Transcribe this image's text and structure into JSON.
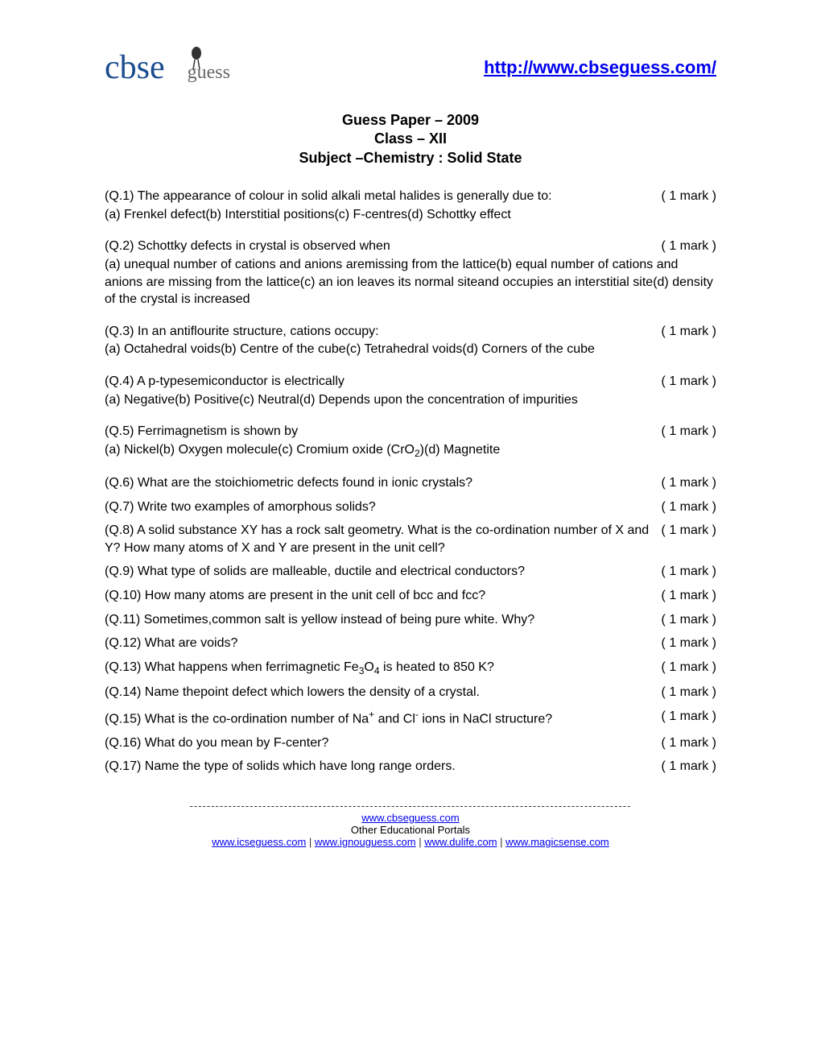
{
  "header": {
    "logo_cbse": "cbse",
    "logo_guess": "guess",
    "url": "http://www.cbseguess.com/"
  },
  "title": {
    "line1": "Guess Paper – 2009",
    "line2": "Class – XII",
    "line3": "Subject –Chemistry : Solid State"
  },
  "questions": [
    {
      "num": "(Q.1)",
      "text": "  The appearance of colour in solid alkali metal halides is generally due to:",
      "mark": "( 1 mark )",
      "options": "(a) Frenkel defect(b) Interstitial positions(c) F-centres(d) Schottky effect"
    },
    {
      "num": "(Q.2)",
      "text": "  Schottky defects in crystal is observed when",
      "mark": "( 1 mark )",
      "options": "(a) unequal number of cations and anions aremissing from the lattice(b) equal number of cations and anions are missing from the lattice(c) an ion leaves its normal siteand occupies an interstitial site(d) density of the crystal is increased"
    },
    {
      "num": "(Q.3)",
      "text": "  In an antiflourite structure, cations occupy:",
      "mark": "( 1 mark )",
      "options": "(a) Octahedral voids(b) Centre of the cube(c) Tetrahedral voids(d) Corners of the cube"
    },
    {
      "num": "(Q.4)",
      "text": "  A p-typesemiconductor is electrically",
      "mark": "( 1 mark )",
      "options": "(a) Negative(b) Positive(c) Neutral(d) Depends upon the concentration of impurities"
    },
    {
      "num": "(Q.5)",
      "text": "  Ferrimagnetism is shown by",
      "mark": "( 1 mark )",
      "options_html": "(a) Nickel(b) Oxygen molecule(c) Cromium oxide (CrO<sub>2</sub>)(d) Magnetite"
    },
    {
      "num": "(Q.6)",
      "text": "  What are the stoichiometric defects found in ionic crystals?",
      "mark": "( 1 mark )"
    },
    {
      "num": " (Q.7)",
      "text": "  Write two examples of amorphous solids?",
      "mark": "( 1 mark )"
    },
    {
      "num": " (Q.8)",
      "text": "  A solid substance XY has a rock salt geometry. What is the co-ordination number of X and Y? How many atoms of X and Y are present in the unit cell?",
      "mark": "( 1 mark )"
    },
    {
      "num": " (Q.9)",
      "text": "  What type of solids are malleable, ductile and electrical conductors?",
      "mark": "( 1 mark )"
    },
    {
      "num": " (Q.10)",
      "text": "  How many atoms are present in the unit cell of bcc and fcc?",
      "mark": "( 1 mark )"
    },
    {
      "num": " (Q.11)",
      "text": "  Sometimes,common salt is yellow instead of being pure white. Why?",
      "mark": "( 1 mark )"
    },
    {
      "num": " (Q.12)",
      "text": "  What are voids?",
      "mark": "( 1 mark )"
    },
    {
      "num": " (Q.13)",
      "text_html": "  What happens when ferrimagnetic Fe<sub>3</sub>O<sub>4</sub> is heated to 850 K?",
      "mark": "( 1 mark )"
    },
    {
      "num": " (Q.14)",
      "text": "  Name thepoint defect which lowers the density of a crystal.",
      "mark": "( 1 mark )"
    },
    {
      "num": " (Q.15)",
      "text_html": "  What is the co-ordination number of Na<sup>+</sup> and Cl<sup>-</sup> ions in NaCl structure?",
      "mark": "( 1 mark )"
    },
    {
      "num": " (Q.16)",
      "text": "  What do you mean by F-center?",
      "mark": "( 1 mark )"
    },
    {
      "num": " (Q.17)",
      "text": "  Name the type of solids which have long range orders.",
      "mark": "( 1 mark )"
    }
  ],
  "footer": {
    "divider": "-------------------------------------------------------------------------------------------------------",
    "main_link": "www.cbseguess.com",
    "sub_text": "Other Educational Portals",
    "links": [
      "www.icseguess.com",
      "www.ignouguess.com",
      "www.dulife.com",
      "www.magicsense.com"
    ],
    "separator": " | "
  }
}
